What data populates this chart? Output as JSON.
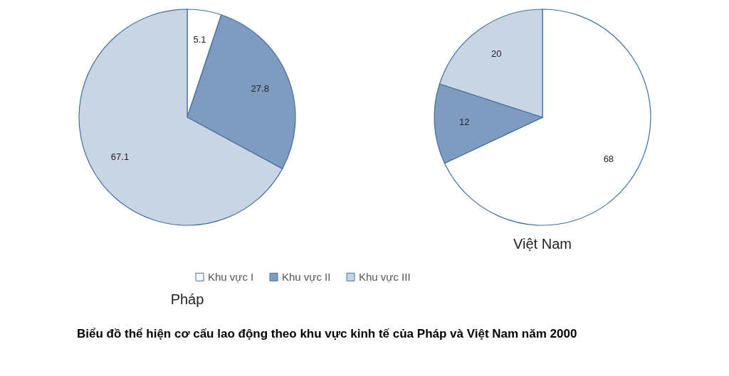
{
  "chart_data": [
    {
      "type": "pie",
      "title": "Pháp",
      "categories": [
        "Khu vực I",
        "Khu vực II",
        "Khu vực III"
      ],
      "values": [
        5.1,
        27.8,
        67.1
      ],
      "colors": [
        "#ffffff",
        "#7f9cc0",
        "#c9d5e4"
      ],
      "data_labels": true,
      "legend": "bottom",
      "annotations": [
        "Biểu đồ thể hiện cơ cấu lao động theo khu vực kinh tế của Pháp và Việt Nam năm 2000"
      ]
    },
    {
      "type": "pie",
      "title": "Việt Nam",
      "categories": [
        null,
        null,
        null
      ],
      "values": [
        68,
        12,
        20
      ],
      "colors": [
        "#ffffff",
        "#7f9cc0",
        "#c9d5e4"
      ],
      "data_labels": true
    }
  ]
}
